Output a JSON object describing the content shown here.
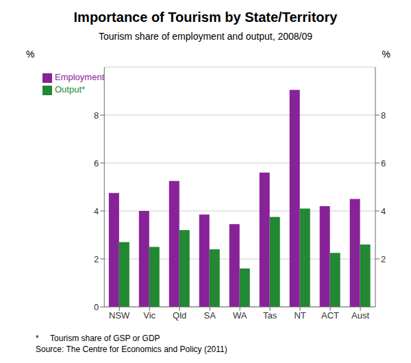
{
  "chart_data": {
    "type": "bar",
    "title": "Importance of Tourism by State/Territory",
    "subtitle": "Tourism share of employment and output, 2008/09",
    "categories": [
      "NSW",
      "Vic",
      "Qld",
      "SA",
      "WA",
      "Tas",
      "NT",
      "ACT",
      "Aust"
    ],
    "series": [
      {
        "name": "Employment",
        "color": "#882299",
        "values": [
          4.75,
          4.0,
          5.25,
          3.85,
          3.45,
          5.6,
          9.05,
          4.2,
          4.5
        ]
      },
      {
        "name": "Output*",
        "color": "#228833",
        "values": [
          2.7,
          2.5,
          3.2,
          2.4,
          1.6,
          3.75,
          4.1,
          2.25,
          2.6
        ]
      }
    ],
    "ylabel": "%",
    "y2label": "%",
    "ylim": [
      0,
      10
    ],
    "yticks": [
      0,
      2,
      4,
      6,
      8
    ],
    "y2lim": [
      0,
      10
    ],
    "y2ticks": [
      2,
      4,
      6,
      8
    ],
    "grid": true,
    "legend": "upper left",
    "annotations": [
      "*     Tourism share of GSP or GDP",
      "Source: The Centre for Economics and Policy (2011)"
    ]
  }
}
